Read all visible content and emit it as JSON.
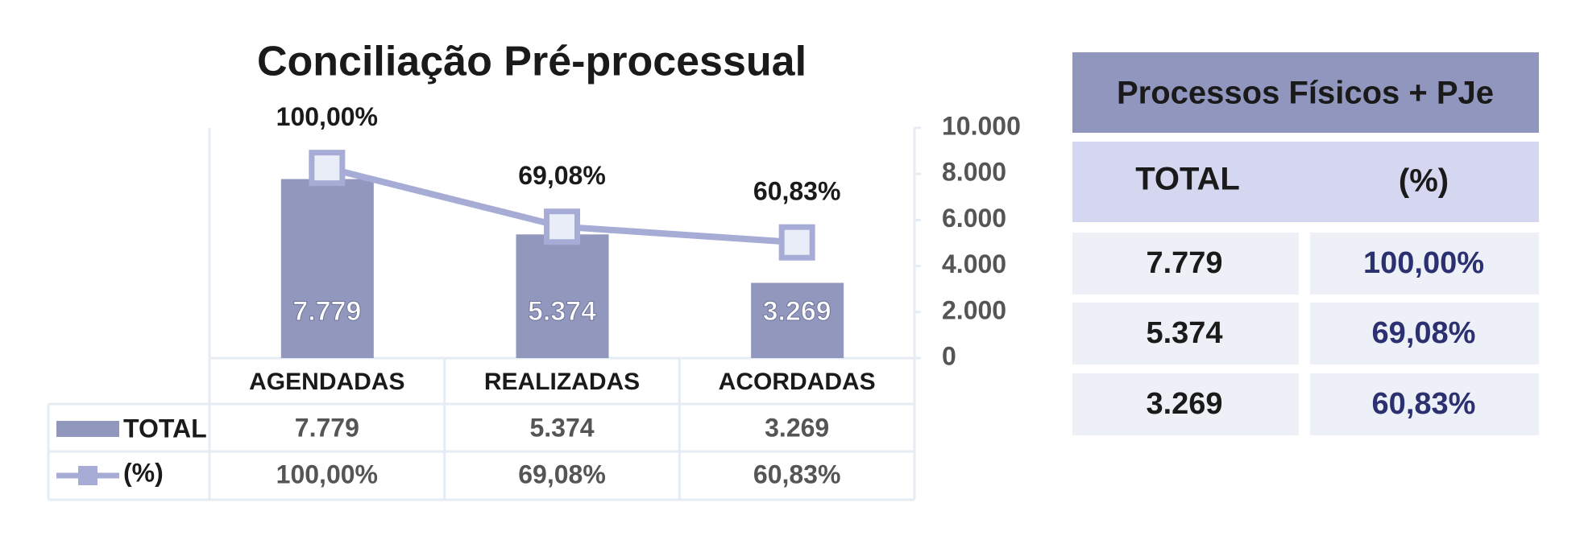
{
  "chart_data": {
    "type": "bar",
    "title": "Conciliação Pré-processual",
    "categories": [
      "AGENDADAS",
      "REALIZADAS",
      "ACORDADAS"
    ],
    "series": [
      {
        "name": "TOTAL",
        "type": "bar",
        "color": "#9197bd",
        "values": [
          7779,
          5374,
          3269
        ],
        "value_labels": [
          "7.779",
          "5.374",
          "3.269"
        ]
      },
      {
        "name": "(%)",
        "type": "line",
        "axis": "y2",
        "color": "#a7acd6",
        "values": [
          100,
          69.08,
          60.83
        ],
        "value_labels": [
          "100,00%",
          "69,08%",
          "60,83%"
        ]
      }
    ],
    "ylim": [
      0,
      10000
    ],
    "yticks": [
      0,
      {
        "value": 2000,
        "label": "2.000"
      },
      {
        "value": 4000,
        "label": "4.000"
      },
      {
        "value": 6000,
        "label": "6.000"
      },
      {
        "value": 8000,
        "label": "8.000"
      },
      {
        "value": 10000,
        "label": "10.000"
      }
    ],
    "y2lim": [
      0,
      121
    ],
    "grid": false
  },
  "side_table": {
    "title": "Processos Físicos + PJe"
  }
}
